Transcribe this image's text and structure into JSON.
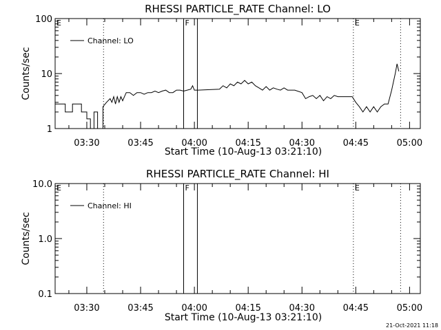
{
  "timestamp": "21-Oct-2021 11:18",
  "chart_data": [
    {
      "type": "line",
      "title": "RHESSI PARTICLE_RATE Channel: LO",
      "xlabel": "Start Time (10-Aug-13 03:21:10)",
      "ylabel": "Counts/sec",
      "yscale": "log",
      "ylim": [
        1,
        100
      ],
      "yticks": [
        1,
        10,
        100
      ],
      "ytick_labels": [
        "1",
        "10",
        "100"
      ],
      "x_unit": "minutes",
      "xlim": [
        "03:21:10",
        "05:03:00"
      ],
      "xticks": [
        "03:30",
        "03:45",
        "04:00",
        "04:15",
        "04:30",
        "04:45",
        "05:00"
      ],
      "legend": "top-left",
      "markers": [
        {
          "label": "E",
          "time": "03:21:10",
          "style": "dotted"
        },
        {
          "label": "",
          "time": "03:34:40",
          "style": "dotted"
        },
        {
          "label": "F",
          "time": "03:57:00",
          "style": "solid"
        },
        {
          "label": "",
          "time": "04:00:50",
          "style": "solid"
        },
        {
          "label": "E",
          "time": "04:44:20",
          "style": "dotted"
        },
        {
          "label": "",
          "time": "04:57:30",
          "style": "dotted"
        }
      ],
      "series": [
        {
          "name": "Channel: LO",
          "x": [
            "03:21:10",
            "03:24:00",
            "03:24:00",
            "03:26:00",
            "03:26:00",
            "03:28:30",
            "03:28:30",
            "03:30:00",
            "03:30:00",
            "03:31:00",
            "03:31:00",
            "03:32:00",
            "03:32:00",
            "03:33:00",
            "03:33:00",
            "03:34:30",
            "03:34:30",
            "03:35:30",
            "03:36:30",
            "03:37:00",
            "03:37:30",
            "03:38:00",
            "03:38:30",
            "03:39:00",
            "03:39:30",
            "03:40:00",
            "03:40:30",
            "03:41:00",
            "03:42:00",
            "03:43:00",
            "03:44:00",
            "03:45:00",
            "03:46:00",
            "03:47:00",
            "03:48:00",
            "03:49:00",
            "03:50:00",
            "03:51:00",
            "03:52:00",
            "03:53:00",
            "03:54:00",
            "03:55:00",
            "03:56:00",
            "03:57:00",
            "03:58:00",
            "03:59:00",
            "03:59:30",
            "04:00:00",
            "04:01:00",
            "04:07:00",
            "04:08:00",
            "04:09:00",
            "04:10:00",
            "04:11:00",
            "04:12:00",
            "04:13:00",
            "04:14:00",
            "04:15:00",
            "04:16:00",
            "04:17:00",
            "04:18:00",
            "04:19:00",
            "04:20:00",
            "04:21:00",
            "04:22:00",
            "04:23:00",
            "04:24:00",
            "04:25:00",
            "04:26:00",
            "04:28:00",
            "04:30:00",
            "04:31:00",
            "04:32:00",
            "04:33:00",
            "04:34:00",
            "04:35:00",
            "04:36:00",
            "04:37:00",
            "04:38:00",
            "04:39:00",
            "04:40:00",
            "04:41:00",
            "04:42:00",
            "04:43:00",
            "04:44:00",
            "04:45:00",
            "04:46:00",
            "04:47:00",
            "04:48:00",
            "04:49:00",
            "04:50:00",
            "04:51:00",
            "04:52:00",
            "04:53:00",
            "04:54:00",
            "04:55:00",
            "04:56:00",
            "04:56:30",
            "04:57:00"
          ],
          "y": [
            2.8,
            2.8,
            2.0,
            2.0,
            2.8,
            2.8,
            2.0,
            2.0,
            1.5,
            1.5,
            1.0,
            1.0,
            2.0,
            2.0,
            1.0,
            1.0,
            2.5,
            3.0,
            3.5,
            3.0,
            3.8,
            2.8,
            3.8,
            3.0,
            3.8,
            3.2,
            3.8,
            4.5,
            4.5,
            4.0,
            4.5,
            4.5,
            4.2,
            4.5,
            4.5,
            4.8,
            4.5,
            4.8,
            5.0,
            4.5,
            4.5,
            5.0,
            5.0,
            4.8,
            5.0,
            5.2,
            6.0,
            5.0,
            5.0,
            5.2,
            6.0,
            5.5,
            6.5,
            6.0,
            7.0,
            6.5,
            7.5,
            6.5,
            7.0,
            6.0,
            5.5,
            5.0,
            5.8,
            5.0,
            5.5,
            5.2,
            5.0,
            5.5,
            5.0,
            5.0,
            4.5,
            3.5,
            3.8,
            4.0,
            3.5,
            4.0,
            3.2,
            3.8,
            3.5,
            4.0,
            3.8,
            3.8,
            3.8,
            3.8,
            3.8,
            3.0,
            2.5,
            2.0,
            2.5,
            2.0,
            2.5,
            2.0,
            2.5,
            2.8,
            2.8,
            5.0,
            10.0,
            15.0,
            11.0
          ]
        }
      ]
    },
    {
      "type": "line",
      "title": "RHESSI PARTICLE_RATE Channel: HI",
      "xlabel": "Start Time (10-Aug-13 03:21:10)",
      "ylabel": "Counts/sec",
      "yscale": "log",
      "ylim": [
        0.1,
        10
      ],
      "yticks": [
        0.1,
        1,
        10
      ],
      "ytick_labels": [
        "0.1",
        "1.0",
        "10.0"
      ],
      "x_unit": "minutes",
      "xlim": [
        "03:21:10",
        "05:03:00"
      ],
      "xticks": [
        "03:30",
        "03:45",
        "04:00",
        "04:15",
        "04:30",
        "04:45",
        "05:00"
      ],
      "legend": "top-left",
      "markers": [
        {
          "label": "E",
          "time": "03:21:10",
          "style": "dotted"
        },
        {
          "label": "",
          "time": "03:34:40",
          "style": "dotted"
        },
        {
          "label": "F",
          "time": "03:57:00",
          "style": "solid"
        },
        {
          "label": "",
          "time": "04:00:50",
          "style": "solid"
        },
        {
          "label": "E",
          "time": "04:44:20",
          "style": "dotted"
        },
        {
          "label": "",
          "time": "04:57:30",
          "style": "dotted"
        }
      ],
      "series": [
        {
          "name": "Channel: HI",
          "x": [],
          "y": []
        }
      ]
    }
  ]
}
